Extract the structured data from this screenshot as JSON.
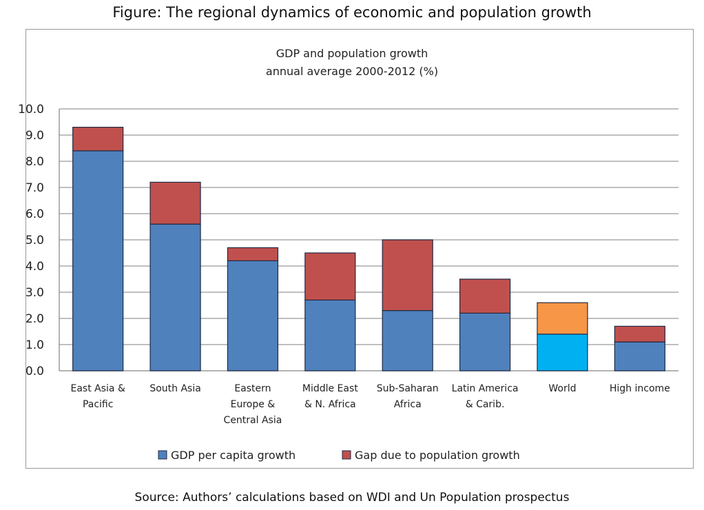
{
  "figure_title": "Figure: The regional dynamics of economic and population growth",
  "source": "Source: Authors’ calculations based on WDI and Un Population prospectus",
  "chart_data": {
    "type": "bar",
    "stacked": true,
    "title": [
      "GDP and population growth",
      "annual average 2000-2012 (%)"
    ],
    "xlabel": "",
    "ylabel": "",
    "ylim": [
      0,
      10
    ],
    "yticks": [
      "0.0",
      "1.0",
      "2.0",
      "3.0",
      "4.0",
      "5.0",
      "6.0",
      "7.0",
      "8.0",
      "9.0",
      "10.0"
    ],
    "grid": true,
    "legend_position": "bottom",
    "categories": [
      [
        "East Asia &",
        "Pacific"
      ],
      [
        "South Asia"
      ],
      [
        "Eastern",
        "Europe &",
        "Central Asia"
      ],
      [
        "Middle East",
        "& N. Africa"
      ],
      [
        "Sub-Saharan",
        "Africa"
      ],
      [
        "Latin America",
        "& Carib."
      ],
      [
        "World"
      ],
      [
        "High income"
      ]
    ],
    "series": [
      {
        "name": "GDP per capita growth",
        "color": "#4f81bd",
        "values": [
          8.4,
          5.6,
          4.2,
          2.7,
          2.3,
          2.2,
          1.4,
          1.1
        ]
      },
      {
        "name": "Gap due to population growth",
        "color": "#c0504d",
        "values": [
          0.9,
          1.6,
          0.5,
          1.8,
          2.7,
          1.3,
          1.2,
          0.6
        ]
      }
    ],
    "highlight": {
      "category_index": 6,
      "colors": [
        "#00b0f0",
        "#f79646"
      ]
    }
  }
}
